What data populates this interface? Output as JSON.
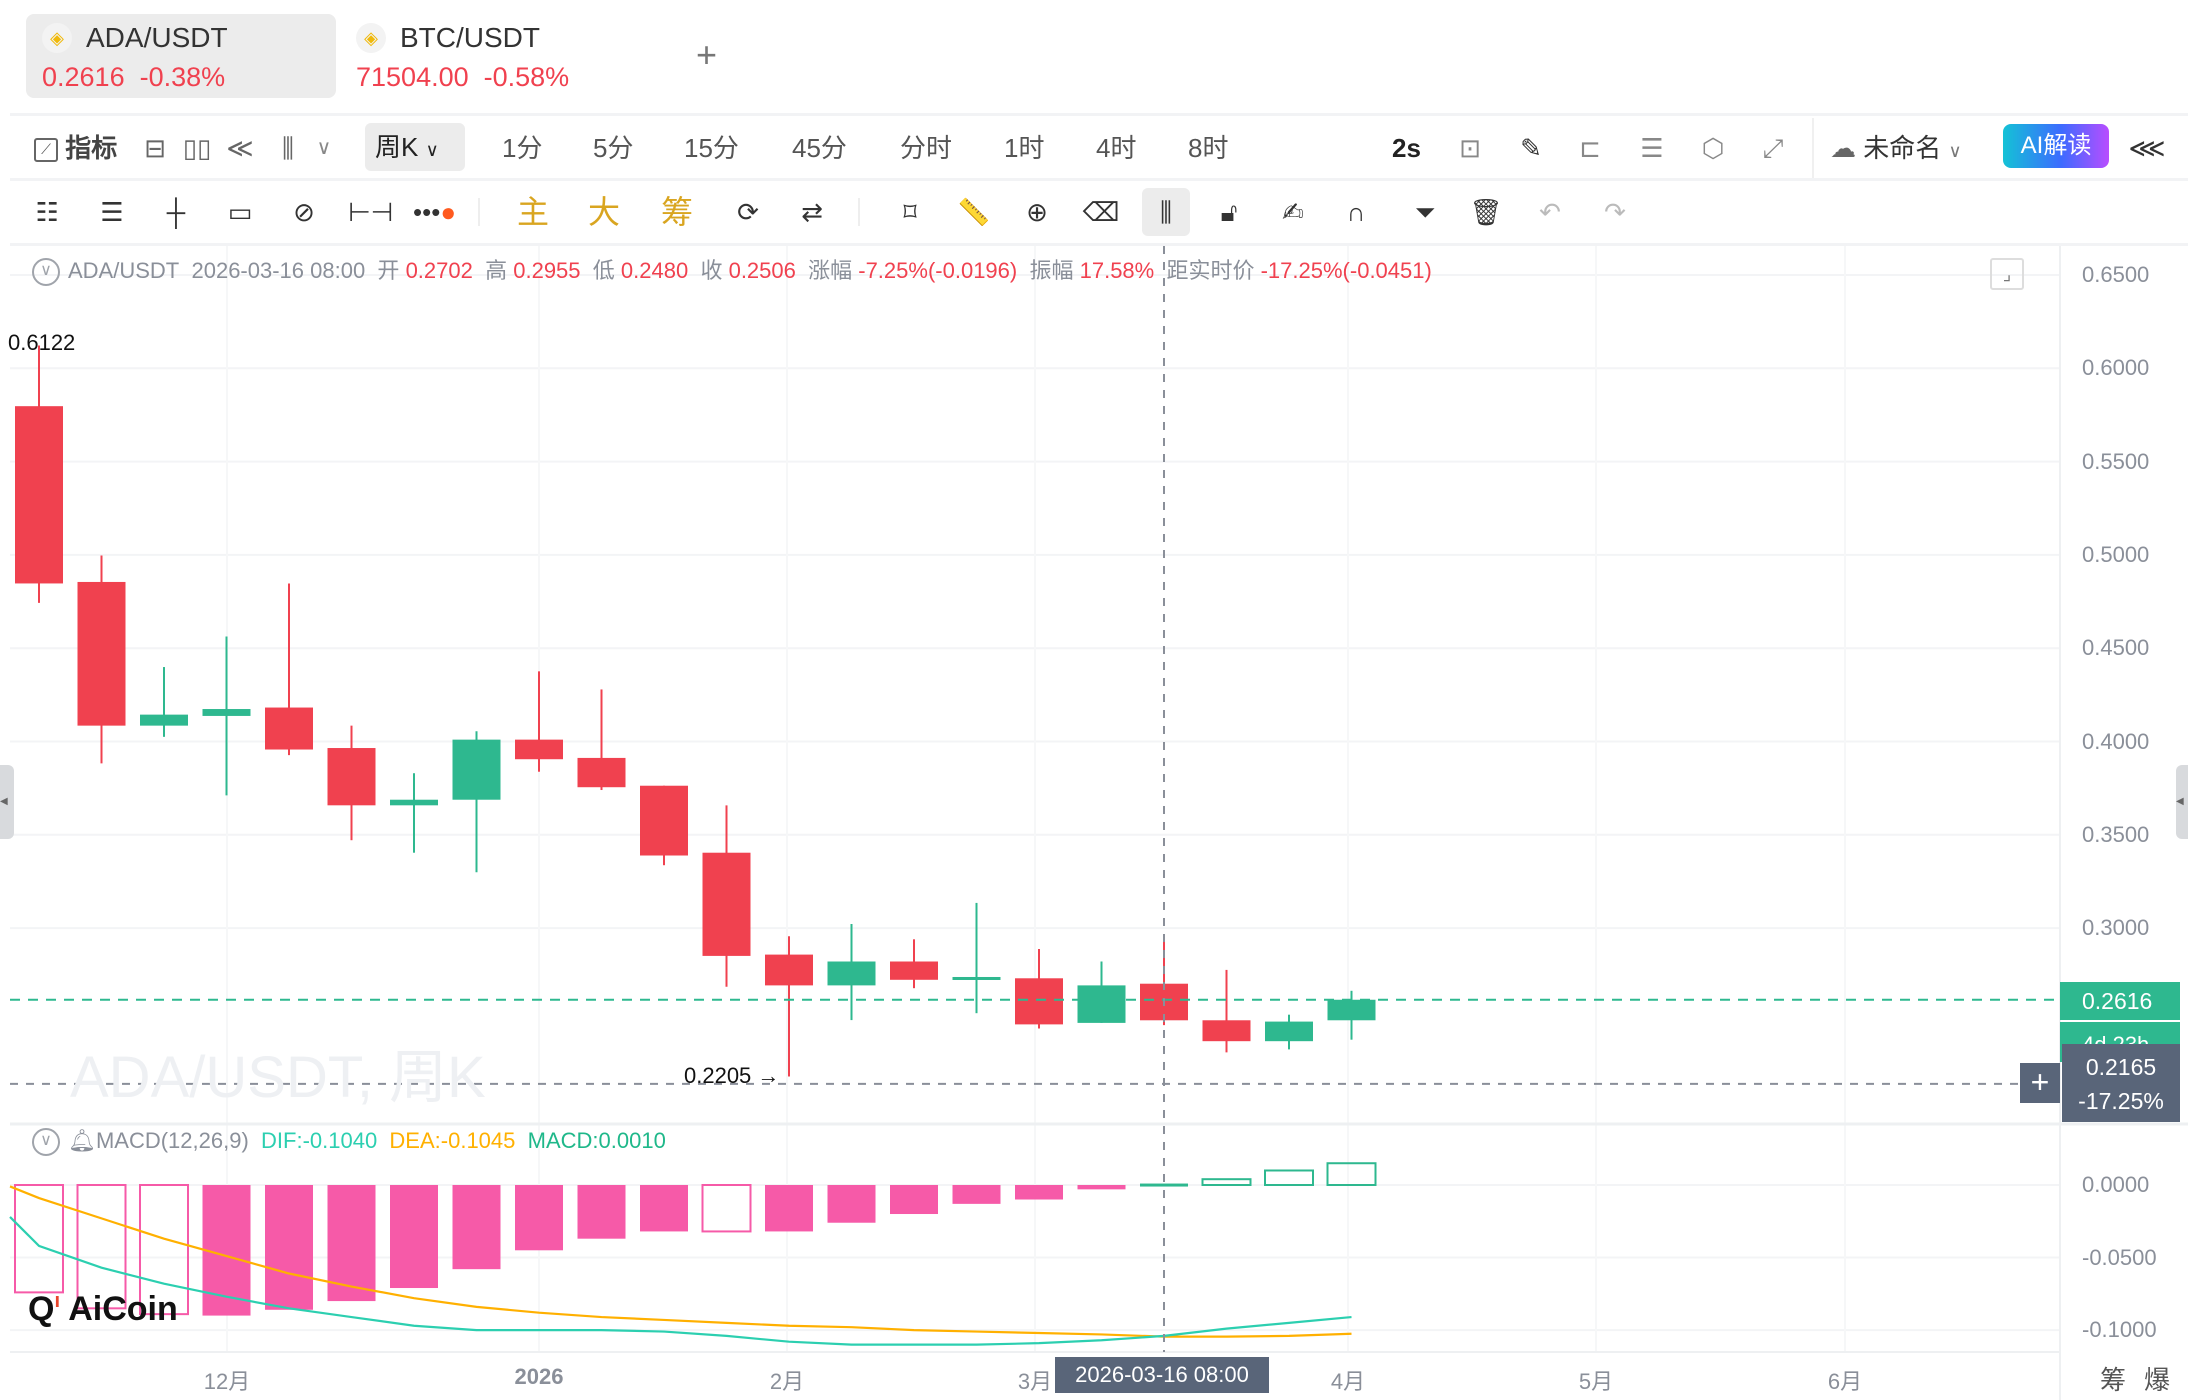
{
  "tabs": [
    {
      "pair": "ADA/USDT",
      "price": "0.2616",
      "change": "-0.38%",
      "active": true
    },
    {
      "pair": "BTC/USDT",
      "price": "71504.00",
      "change": "-0.58%",
      "active": false
    }
  ],
  "add_tab_label": "+",
  "toolbar": {
    "indicators": "指标",
    "period_selected": "周K",
    "periods": [
      "1分",
      "5分",
      "15分",
      "45分",
      "分时",
      "1时",
      "4时",
      "8时"
    ],
    "refresh": "2s",
    "layout_name": "未命名",
    "ai_label": "AI解读"
  },
  "draw_toolbar": {
    "gold_labels": [
      "主",
      "大",
      "筹"
    ]
  },
  "info": {
    "pair": "ADA/USDT",
    "datetime": "2026-03-16 08:00",
    "open_label": "开",
    "open": "0.2702",
    "high_label": "高",
    "high": "0.2955",
    "low_label": "低",
    "low": "0.2480",
    "close_label": "收",
    "close": "0.2506",
    "chg_label": "涨幅",
    "chg": "-7.25%(-0.0196)",
    "amp_label": "振幅",
    "amp": "17.58%",
    "dist_label": "距实时价",
    "dist": "-17.25%(-0.0451)"
  },
  "watermark": "ADA/USDT, 周K",
  "logo": "AiCoin",
  "macd_info": {
    "name": "MACD(12,26,9)",
    "dif": "DIF:-0.1040",
    "dea": "DEA:-0.1045",
    "macd": "MACD:0.0010"
  },
  "price_axis": [
    "0.6500",
    "0.6000",
    "0.5500",
    "0.5000",
    "0.4500",
    "0.4000",
    "0.3500",
    "0.3000"
  ],
  "macd_axis": [
    "0.0000",
    "-0.0500",
    "-0.1000"
  ],
  "x_axis": [
    "12月",
    "2026",
    "2月",
    "3月",
    "4月",
    "5月",
    "6月"
  ],
  "current_price": "0.2616",
  "countdown": "4d 23h",
  "cursor_price": "0.2165",
  "cursor_pct": "-17.25%",
  "cursor_time": "2026-03-16 08:00",
  "max_label": "0.6122",
  "min_label": "0.2205 →",
  "bottom_right": [
    "筹",
    "爆"
  ],
  "colors": {
    "up": "#2eb88f",
    "down": "#f0414f",
    "hist": "#f65aa8",
    "dif": "#2ccfb0",
    "dea": "#ffb000",
    "ai_gradient": [
      "#14c2d6",
      "#3d6bff",
      "#b84dff"
    ]
  },
  "chart_data": {
    "type": "candlestick",
    "interval": "周K",
    "ylim": [
      0.2,
      0.66
    ],
    "candles": [
      {
        "o": 0.5797,
        "h": 0.6122,
        "l": 0.4743,
        "c": 0.4847
      },
      {
        "o": 0.4855,
        "h": 0.4997,
        "l": 0.3883,
        "c": 0.4085
      },
      {
        "o": 0.4085,
        "h": 0.4399,
        "l": 0.4025,
        "c": 0.4144
      },
      {
        "o": 0.4137,
        "h": 0.4563,
        "l": 0.3711,
        "c": 0.4174
      },
      {
        "o": 0.4182,
        "h": 0.4847,
        "l": 0.3927,
        "c": 0.3957
      },
      {
        "o": 0.3965,
        "h": 0.4085,
        "l": 0.3471,
        "c": 0.3658
      },
      {
        "o": 0.3658,
        "h": 0.383,
        "l": 0.3404,
        "c": 0.3688
      },
      {
        "o": 0.3688,
        "h": 0.4055,
        "l": 0.3299,
        "c": 0.401
      },
      {
        "o": 0.401,
        "h": 0.4376,
        "l": 0.3838,
        "c": 0.3905
      },
      {
        "o": 0.3912,
        "h": 0.4279,
        "l": 0.374,
        "c": 0.3755
      },
      {
        "o": 0.3763,
        "h": 0.3763,
        "l": 0.3337,
        "c": 0.3389
      },
      {
        "o": 0.3404,
        "h": 0.3658,
        "l": 0.2686,
        "c": 0.2851
      },
      {
        "o": 0.2858,
        "h": 0.2956,
        "l": 0.2205,
        "c": 0.2693
      },
      {
        "o": 0.2693,
        "h": 0.3022,
        "l": 0.2507,
        "c": 0.2821
      },
      {
        "o": 0.2821,
        "h": 0.294,
        "l": 0.2678,
        "c": 0.2723
      },
      {
        "o": 0.2723,
        "h": 0.3135,
        "l": 0.2544,
        "c": 0.2738
      },
      {
        "o": 0.2731,
        "h": 0.2888,
        "l": 0.2462,
        "c": 0.2484
      },
      {
        "o": 0.2492,
        "h": 0.2821,
        "l": 0.2492,
        "c": 0.2693
      },
      {
        "o": 0.2702,
        "h": 0.2955,
        "l": 0.248,
        "c": 0.2506
      },
      {
        "o": 0.2506,
        "h": 0.2776,
        "l": 0.2334,
        "c": 0.2394
      },
      {
        "o": 0.2394,
        "h": 0.2536,
        "l": 0.235,
        "c": 0.2499
      },
      {
        "o": 0.2506,
        "h": 0.2664,
        "l": 0.2402,
        "c": 0.2616
      }
    ],
    "macd": {
      "ylim": [
        -0.115,
        0.02
      ],
      "hist": [
        -0.074,
        -0.085,
        -0.089,
        -0.09,
        -0.086,
        -0.08,
        -0.071,
        -0.058,
        -0.045,
        -0.037,
        -0.032,
        -0.032,
        -0.032,
        -0.026,
        -0.02,
        -0.013,
        -0.01,
        -0.003,
        0.001,
        0.004,
        0.01,
        0.015
      ],
      "hist_hollow": [
        true,
        true,
        true,
        false,
        false,
        false,
        false,
        false,
        false,
        false,
        false,
        true,
        false,
        false,
        false,
        false,
        false,
        false,
        false,
        true,
        true,
        true
      ],
      "dif": [
        -0.042,
        -0.057,
        -0.068,
        -0.077,
        -0.085,
        -0.091,
        -0.097,
        -0.1,
        -0.1,
        -0.1,
        -0.101,
        -0.104,
        -0.108,
        -0.11,
        -0.11,
        -0.11,
        -0.109,
        -0.107,
        -0.104,
        -0.099,
        -0.095,
        -0.091
      ],
      "dea": [
        -0.009,
        -0.023,
        -0.037,
        -0.049,
        -0.061,
        -0.07,
        -0.078,
        -0.084,
        -0.088,
        -0.091,
        -0.093,
        -0.095,
        -0.097,
        -0.098,
        -0.1,
        -0.101,
        -0.102,
        -0.103,
        -0.1045,
        -0.1045,
        -0.104,
        -0.1025
      ]
    },
    "crosshair_index": 18
  }
}
